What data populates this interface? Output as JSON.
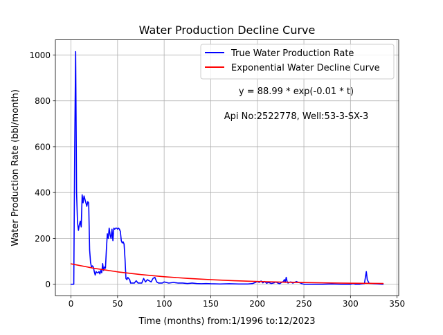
{
  "chart_data": {
    "type": "line",
    "title": "Water Production Decline Curve",
    "xlabel": "Time (months) from:1/1996 to:12/2023",
    "ylabel": "Water Production Rate (bbl/month)",
    "xlim": [
      -16.75,
      351.75
    ],
    "ylim": [
      -50,
      1066
    ],
    "xticks": [
      0,
      50,
      100,
      150,
      200,
      250,
      300,
      350
    ],
    "yticks": [
      0,
      200,
      400,
      600,
      800,
      1000
    ],
    "xtick_labels": [
      "0",
      "50",
      "100",
      "150",
      "200",
      "250",
      "300",
      "350"
    ],
    "ytick_labels": [
      "0",
      "200",
      "400",
      "600",
      "800",
      "1000"
    ],
    "grid": true,
    "legend_position": "top-right",
    "annotations": [
      "y = 88.99 * exp(-0.01 * t)",
      "Api No:2522778, Well:53-3-SX-3"
    ],
    "series": [
      {
        "name": "True Water Production Rate",
        "color": "#0000ff",
        "x": [
          0,
          3,
          4,
          5,
          6,
          7,
          8,
          9,
          10,
          11,
          12,
          13,
          14,
          15,
          16,
          17,
          18,
          19,
          20,
          21,
          22,
          23,
          24,
          25,
          26,
          27,
          28,
          29,
          30,
          31,
          32,
          33,
          34,
          35,
          36,
          37,
          38,
          39,
          40,
          41,
          42,
          43,
          44,
          45,
          46,
          47,
          48,
          49,
          50,
          51,
          52,
          53,
          54,
          55,
          56,
          57,
          58,
          59,
          60,
          61,
          62,
          63,
          64,
          65,
          66,
          68,
          70,
          72,
          74,
          76,
          78,
          80,
          82,
          84,
          86,
          88,
          90,
          92,
          94,
          96,
          98,
          100,
          105,
          110,
          115,
          120,
          125,
          130,
          135,
          140,
          145,
          150,
          160,
          170,
          180,
          190,
          195,
          198,
          200,
          202,
          204,
          206,
          208,
          210,
          212,
          215,
          218,
          220,
          222,
          224,
          226,
          228,
          229,
          230,
          231,
          232,
          233,
          234,
          236,
          238,
          240,
          242,
          244,
          246,
          248,
          250,
          260,
          270,
          280,
          290,
          300,
          303,
          305,
          310,
          315,
          316,
          317,
          318,
          320,
          325,
          330,
          335
        ],
        "y": [
          0,
          0,
          600,
          1015,
          400,
          270,
          235,
          260,
          275,
          250,
          390,
          355,
          385,
          370,
          355,
          340,
          360,
          355,
          150,
          95,
          75,
          80,
          75,
          55,
          40,
          55,
          50,
          50,
          55,
          45,
          60,
          50,
          90,
          60,
          75,
          70,
          150,
          220,
          200,
          245,
          215,
          200,
          240,
          190,
          245,
          240,
          245,
          245,
          240,
          245,
          240,
          230,
          190,
          180,
          185,
          175,
          110,
          25,
          20,
          30,
          25,
          20,
          5,
          5,
          5,
          5,
          15,
          5,
          5,
          5,
          25,
          10,
          20,
          15,
          10,
          25,
          30,
          10,
          5,
          5,
          5,
          10,
          5,
          8,
          5,
          5,
          3,
          5,
          3,
          2,
          3,
          2,
          1,
          2,
          1,
          1,
          3,
          8,
          12,
          8,
          14,
          6,
          12,
          4,
          8,
          3,
          6,
          10,
          5,
          2,
          8,
          12,
          20,
          8,
          30,
          12,
          5,
          8,
          10,
          5,
          8,
          12,
          8,
          6,
          2,
          0,
          0,
          0,
          1,
          0,
          0,
          2,
          0,
          0,
          3,
          30,
          55,
          20,
          4,
          2,
          1,
          0
        ]
      },
      {
        "name": "Exponential Water Decline Curve",
        "color": "#ff0000",
        "function": "88.99 * exp(-0.01 * t)",
        "x": [
          0,
          25,
          50,
          75,
          100,
          125,
          150,
          175,
          200,
          225,
          250,
          275,
          300,
          335
        ],
        "y": [
          88.99,
          69.3,
          53.97,
          42.03,
          32.74,
          25.5,
          19.86,
          15.46,
          12.04,
          9.38,
          7.3,
          5.69,
          4.43,
          3.12
        ]
      }
    ]
  }
}
